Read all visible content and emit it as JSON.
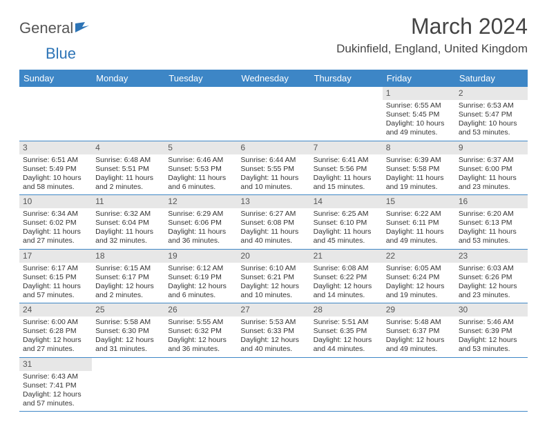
{
  "logo": {
    "text1": "General",
    "text2": "Blue"
  },
  "title": "March 2024",
  "location": "Dukinfield, England, United Kingdom",
  "colors": {
    "header_bg": "#3d86c6",
    "header_text": "#ffffff",
    "daynum_bg": "#e7e7e7",
    "border": "#3d86c6",
    "logo_blue": "#2d74b6"
  },
  "weekdays": [
    "Sunday",
    "Monday",
    "Tuesday",
    "Wednesday",
    "Thursday",
    "Friday",
    "Saturday"
  ],
  "weeks": [
    [
      null,
      null,
      null,
      null,
      null,
      {
        "n": "1",
        "sr": "Sunrise: 6:55 AM",
        "ss": "Sunset: 5:45 PM",
        "dl": "Daylight: 10 hours and 49 minutes."
      },
      {
        "n": "2",
        "sr": "Sunrise: 6:53 AM",
        "ss": "Sunset: 5:47 PM",
        "dl": "Daylight: 10 hours and 53 minutes."
      }
    ],
    [
      {
        "n": "3",
        "sr": "Sunrise: 6:51 AM",
        "ss": "Sunset: 5:49 PM",
        "dl": "Daylight: 10 hours and 58 minutes."
      },
      {
        "n": "4",
        "sr": "Sunrise: 6:48 AM",
        "ss": "Sunset: 5:51 PM",
        "dl": "Daylight: 11 hours and 2 minutes."
      },
      {
        "n": "5",
        "sr": "Sunrise: 6:46 AM",
        "ss": "Sunset: 5:53 PM",
        "dl": "Daylight: 11 hours and 6 minutes."
      },
      {
        "n": "6",
        "sr": "Sunrise: 6:44 AM",
        "ss": "Sunset: 5:55 PM",
        "dl": "Daylight: 11 hours and 10 minutes."
      },
      {
        "n": "7",
        "sr": "Sunrise: 6:41 AM",
        "ss": "Sunset: 5:56 PM",
        "dl": "Daylight: 11 hours and 15 minutes."
      },
      {
        "n": "8",
        "sr": "Sunrise: 6:39 AM",
        "ss": "Sunset: 5:58 PM",
        "dl": "Daylight: 11 hours and 19 minutes."
      },
      {
        "n": "9",
        "sr": "Sunrise: 6:37 AM",
        "ss": "Sunset: 6:00 PM",
        "dl": "Daylight: 11 hours and 23 minutes."
      }
    ],
    [
      {
        "n": "10",
        "sr": "Sunrise: 6:34 AM",
        "ss": "Sunset: 6:02 PM",
        "dl": "Daylight: 11 hours and 27 minutes."
      },
      {
        "n": "11",
        "sr": "Sunrise: 6:32 AM",
        "ss": "Sunset: 6:04 PM",
        "dl": "Daylight: 11 hours and 32 minutes."
      },
      {
        "n": "12",
        "sr": "Sunrise: 6:29 AM",
        "ss": "Sunset: 6:06 PM",
        "dl": "Daylight: 11 hours and 36 minutes."
      },
      {
        "n": "13",
        "sr": "Sunrise: 6:27 AM",
        "ss": "Sunset: 6:08 PM",
        "dl": "Daylight: 11 hours and 40 minutes."
      },
      {
        "n": "14",
        "sr": "Sunrise: 6:25 AM",
        "ss": "Sunset: 6:10 PM",
        "dl": "Daylight: 11 hours and 45 minutes."
      },
      {
        "n": "15",
        "sr": "Sunrise: 6:22 AM",
        "ss": "Sunset: 6:11 PM",
        "dl": "Daylight: 11 hours and 49 minutes."
      },
      {
        "n": "16",
        "sr": "Sunrise: 6:20 AM",
        "ss": "Sunset: 6:13 PM",
        "dl": "Daylight: 11 hours and 53 minutes."
      }
    ],
    [
      {
        "n": "17",
        "sr": "Sunrise: 6:17 AM",
        "ss": "Sunset: 6:15 PM",
        "dl": "Daylight: 11 hours and 57 minutes."
      },
      {
        "n": "18",
        "sr": "Sunrise: 6:15 AM",
        "ss": "Sunset: 6:17 PM",
        "dl": "Daylight: 12 hours and 2 minutes."
      },
      {
        "n": "19",
        "sr": "Sunrise: 6:12 AM",
        "ss": "Sunset: 6:19 PM",
        "dl": "Daylight: 12 hours and 6 minutes."
      },
      {
        "n": "20",
        "sr": "Sunrise: 6:10 AM",
        "ss": "Sunset: 6:21 PM",
        "dl": "Daylight: 12 hours and 10 minutes."
      },
      {
        "n": "21",
        "sr": "Sunrise: 6:08 AM",
        "ss": "Sunset: 6:22 PM",
        "dl": "Daylight: 12 hours and 14 minutes."
      },
      {
        "n": "22",
        "sr": "Sunrise: 6:05 AM",
        "ss": "Sunset: 6:24 PM",
        "dl": "Daylight: 12 hours and 19 minutes."
      },
      {
        "n": "23",
        "sr": "Sunrise: 6:03 AM",
        "ss": "Sunset: 6:26 PM",
        "dl": "Daylight: 12 hours and 23 minutes."
      }
    ],
    [
      {
        "n": "24",
        "sr": "Sunrise: 6:00 AM",
        "ss": "Sunset: 6:28 PM",
        "dl": "Daylight: 12 hours and 27 minutes."
      },
      {
        "n": "25",
        "sr": "Sunrise: 5:58 AM",
        "ss": "Sunset: 6:30 PM",
        "dl": "Daylight: 12 hours and 31 minutes."
      },
      {
        "n": "26",
        "sr": "Sunrise: 5:55 AM",
        "ss": "Sunset: 6:32 PM",
        "dl": "Daylight: 12 hours and 36 minutes."
      },
      {
        "n": "27",
        "sr": "Sunrise: 5:53 AM",
        "ss": "Sunset: 6:33 PM",
        "dl": "Daylight: 12 hours and 40 minutes."
      },
      {
        "n": "28",
        "sr": "Sunrise: 5:51 AM",
        "ss": "Sunset: 6:35 PM",
        "dl": "Daylight: 12 hours and 44 minutes."
      },
      {
        "n": "29",
        "sr": "Sunrise: 5:48 AM",
        "ss": "Sunset: 6:37 PM",
        "dl": "Daylight: 12 hours and 49 minutes."
      },
      {
        "n": "30",
        "sr": "Sunrise: 5:46 AM",
        "ss": "Sunset: 6:39 PM",
        "dl": "Daylight: 12 hours and 53 minutes."
      }
    ],
    [
      {
        "n": "31",
        "sr": "Sunrise: 6:43 AM",
        "ss": "Sunset: 7:41 PM",
        "dl": "Daylight: 12 hours and 57 minutes."
      },
      null,
      null,
      null,
      null,
      null,
      null
    ]
  ]
}
